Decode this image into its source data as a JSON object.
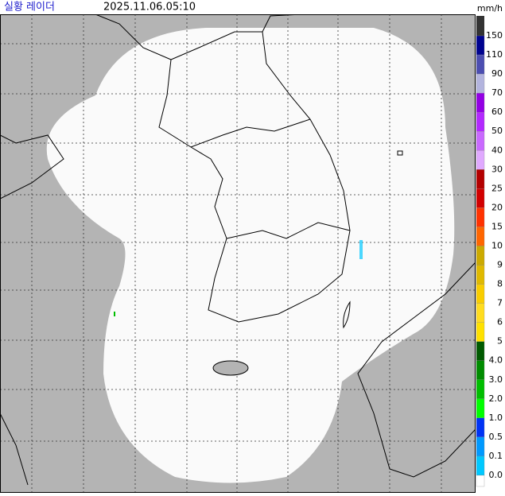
{
  "header": {
    "title": "실황 레이더",
    "timestamp": "2025.11.06.05:10"
  },
  "legend": {
    "unit": "mm/h",
    "top_color": "#333333",
    "levels": [
      {
        "label": "150",
        "color": "#000390"
      },
      {
        "label": "110",
        "color": "#4c4eb1"
      },
      {
        "label": "90",
        "color": "#b3b4de"
      },
      {
        "label": "70",
        "color": "#9300e4"
      },
      {
        "label": "60",
        "color": "#b329ff"
      },
      {
        "label": "50",
        "color": "#c969ff"
      },
      {
        "label": "40",
        "color": "#e0a9ff"
      },
      {
        "label": "30",
        "color": "#b40000"
      },
      {
        "label": "25",
        "color": "#d20000"
      },
      {
        "label": "20",
        "color": "#ff3200"
      },
      {
        "label": "15",
        "color": "#ff6600"
      },
      {
        "label": "10",
        "color": "#ccaa00"
      },
      {
        "label": "9",
        "color": "#e0b900"
      },
      {
        "label": "8",
        "color": "#f9cd00"
      },
      {
        "label": "7",
        "color": "#ffdc1f"
      },
      {
        "label": "6",
        "color": "#ffe100"
      },
      {
        "label": "5",
        "color": "#005a00"
      },
      {
        "label": "4.0",
        "color": "#008c00"
      },
      {
        "label": "3.0",
        "color": "#00be00"
      },
      {
        "label": "2.0",
        "color": "#00ff00"
      },
      {
        "label": "1.0",
        "color": "#0033f5"
      },
      {
        "label": "0.5",
        "color": "#0099ff"
      },
      {
        "label": "0.1",
        "color": "#00c8ff"
      },
      {
        "label": "0.0",
        "color": "#ffffff"
      }
    ]
  }
}
